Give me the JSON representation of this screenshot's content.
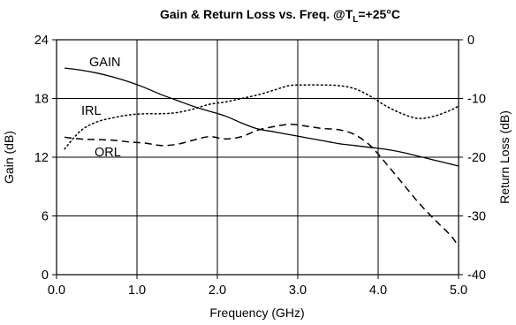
{
  "chart_data": {
    "type": "line",
    "title": "Gain & Return Loss vs. Freq. @T",
    "title_subscript": "L",
    "title_suffix": "=+25°C",
    "xlabel": "Frequency (GHz)",
    "ylabel": "Gain (dB)",
    "y2label": "Return Loss (dB)",
    "xlim": [
      0.0,
      5.0
    ],
    "ylim": [
      0,
      24
    ],
    "y2lim": [
      -40,
      0
    ],
    "xticks": [
      "0.0",
      "1.0",
      "2.0",
      "3.0",
      "4.0",
      "5.0"
    ],
    "yticks": [
      "0",
      "6",
      "12",
      "18",
      "24"
    ],
    "y2ticks": [
      "-40",
      "-30",
      "-20",
      "-10",
      "0"
    ],
    "grid": true,
    "series": [
      {
        "name": "GAIN",
        "axis": "left",
        "line_style": "solid",
        "x": [
          0.1,
          0.3,
          0.5,
          0.7,
          0.9,
          1.1,
          1.3,
          1.5,
          1.7,
          1.9,
          2.1,
          2.3,
          2.5,
          2.7,
          2.9,
          3.1,
          3.3,
          3.5,
          3.7,
          3.9,
          4.1,
          4.3,
          4.5,
          4.7,
          5.0
        ],
        "values": [
          21.1,
          20.9,
          20.6,
          20.2,
          19.7,
          19.1,
          18.4,
          17.8,
          17.2,
          16.7,
          16.2,
          15.5,
          14.9,
          14.6,
          14.3,
          14.0,
          13.7,
          13.4,
          13.2,
          13.0,
          12.8,
          12.5,
          12.1,
          11.7,
          11.1
        ]
      },
      {
        "name": "IRL",
        "axis": "right",
        "line_style": "dotted",
        "x": [
          0.1,
          0.3,
          0.5,
          0.7,
          0.9,
          1.1,
          1.3,
          1.5,
          1.7,
          1.9,
          2.1,
          2.3,
          2.5,
          2.7,
          2.9,
          3.1,
          3.3,
          3.5,
          3.7,
          3.9,
          4.1,
          4.3,
          4.5,
          4.7,
          4.9,
          5.0
        ],
        "values": [
          -18.6,
          -15.5,
          -14.0,
          -13.3,
          -12.8,
          -12.6,
          -12.6,
          -12.4,
          -11.8,
          -11.0,
          -10.6,
          -10.0,
          -9.4,
          -8.6,
          -7.8,
          -7.7,
          -7.7,
          -7.8,
          -8.3,
          -9.6,
          -11.3,
          -12.6,
          -13.4,
          -13.0,
          -12.0,
          -11.3
        ]
      },
      {
        "name": "ORL",
        "axis": "right",
        "line_style": "dashed",
        "x": [
          0.1,
          0.3,
          0.5,
          0.7,
          0.9,
          1.1,
          1.3,
          1.5,
          1.7,
          1.9,
          2.1,
          2.3,
          2.5,
          2.7,
          2.9,
          3.1,
          3.3,
          3.5,
          3.7,
          3.9,
          4.1,
          4.3,
          4.5,
          4.7,
          4.9,
          5.0
        ],
        "values": [
          -16.6,
          -16.9,
          -17.0,
          -17.1,
          -17.4,
          -17.6,
          -18.0,
          -17.8,
          -17.1,
          -16.5,
          -16.9,
          -16.5,
          -15.4,
          -14.8,
          -14.4,
          -14.7,
          -15.1,
          -15.3,
          -16.1,
          -18.0,
          -21.1,
          -24.4,
          -27.7,
          -30.6,
          -33.3,
          -35.2
        ]
      }
    ]
  }
}
